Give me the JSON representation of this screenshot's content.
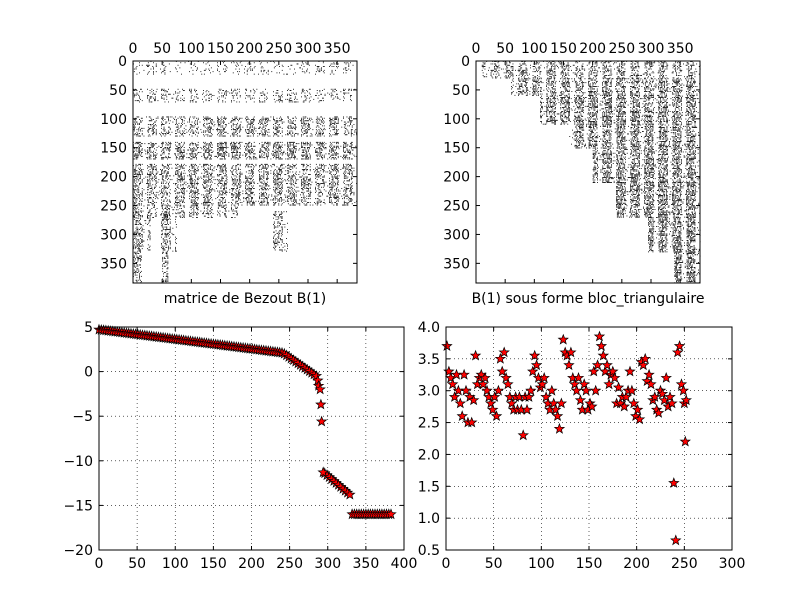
{
  "chart_data": [
    {
      "type": "heatmap",
      "subtype": "sparsity-pattern",
      "xlabel": "matrice de Bezout B(1)",
      "xlim": [
        0,
        384
      ],
      "ylim": [
        0,
        384
      ],
      "x_axis_position": "top",
      "y_axis_inverted": true,
      "xticks": [
        0,
        50,
        100,
        150,
        200,
        250,
        300,
        350
      ],
      "xtick_labels": [
        "0",
        "50",
        "100",
        "150",
        "200",
        "250",
        "300",
        "350"
      ],
      "yticks": [
        0,
        50,
        100,
        150,
        200,
        250,
        300,
        350
      ],
      "ytick_labels": [
        "0",
        "50",
        "100",
        "150",
        "200",
        "250",
        "300",
        "350"
      ],
      "blocks": [
        {
          "x": [
            0,
            384
          ],
          "y": [
            0,
            24
          ],
          "density": 0.12
        },
        {
          "x": [
            0,
            384
          ],
          "y": [
            48,
            72
          ],
          "density": 0.2
        },
        {
          "x": [
            0,
            384
          ],
          "y": [
            96,
            130
          ],
          "density": 0.35
        },
        {
          "x": [
            0,
            384
          ],
          "y": [
            140,
            170
          ],
          "density": 0.45
        },
        {
          "x": [
            0,
            384
          ],
          "y": [
            178,
            250
          ],
          "density": 0.38
        },
        {
          "x": [
            0,
            180
          ],
          "y": [
            250,
            270
          ],
          "density": 0.3
        },
        {
          "x": [
            0,
            30
          ],
          "y": [
            260,
            330
          ],
          "density": 0.35
        },
        {
          "x": [
            48,
            75
          ],
          "y": [
            260,
            330
          ],
          "density": 0.35
        },
        {
          "x": [
            240,
            265
          ],
          "y": [
            260,
            330
          ],
          "density": 0.3
        },
        {
          "x": [
            0,
            15
          ],
          "y": [
            330,
            384
          ],
          "density": 0.3
        },
        {
          "x": [
            50,
            60
          ],
          "y": [
            330,
            384
          ],
          "density": 0.35
        }
      ]
    },
    {
      "type": "heatmap",
      "subtype": "sparsity-pattern",
      "xlabel": "B(1) sous forme bloc_triangulaire",
      "xlim": [
        0,
        384
      ],
      "ylim": [
        0,
        384
      ],
      "x_axis_position": "top",
      "y_axis_inverted": true,
      "xticks": [
        0,
        50,
        100,
        150,
        200,
        250,
        300,
        350
      ],
      "xtick_labels": [
        "0",
        "50",
        "100",
        "150",
        "200",
        "250",
        "300",
        "350"
      ],
      "yticks": [
        0,
        50,
        100,
        150,
        200,
        250,
        300,
        350
      ],
      "ytick_labels": [
        "0",
        "50",
        "100",
        "150",
        "200",
        "250",
        "300",
        "350"
      ],
      "blocks": [
        {
          "x": [
            10,
            384
          ],
          "y": [
            0,
            30
          ],
          "density": 0.35
        },
        {
          "x": [
            60,
            384
          ],
          "y": [
            30,
            60
          ],
          "density": 0.45
        },
        {
          "x": [
            110,
            384
          ],
          "y": [
            60,
            110
          ],
          "density": 0.5
        },
        {
          "x": [
            160,
            384
          ],
          "y": [
            110,
            150
          ],
          "density": 0.5
        },
        {
          "x": [
            200,
            384
          ],
          "y": [
            150,
            210
          ],
          "density": 0.5
        },
        {
          "x": [
            240,
            384
          ],
          "y": [
            210,
            270
          ],
          "density": 0.55
        },
        {
          "x": [
            295,
            384
          ],
          "y": [
            270,
            330
          ],
          "density": 0.55
        },
        {
          "x": [
            340,
            384
          ],
          "y": [
            330,
            384
          ],
          "density": 0.6
        }
      ]
    },
    {
      "type": "scatter",
      "marker": "star",
      "marker_color": "#ff0000",
      "marker_edge_color": "#000000",
      "grid": true,
      "xlim": [
        0,
        400
      ],
      "ylim": [
        -20,
        5
      ],
      "xticks": [
        0,
        50,
        100,
        150,
        200,
        250,
        300,
        350,
        400
      ],
      "xtick_labels": [
        "0",
        "50",
        "100",
        "150",
        "200",
        "250",
        "300",
        "350",
        "400"
      ],
      "yticks": [
        -20,
        -15,
        -10,
        -5,
        0,
        5
      ],
      "ytick_labels": [
        "−20",
        "−15",
        "−10",
        "−5",
        "0",
        "5"
      ],
      "segments": [
        {
          "x_start": 0,
          "x_end": 240,
          "step": 3,
          "y_start": 4.7,
          "y_end": 2.1
        },
        {
          "x_start": 243,
          "x_end": 285,
          "step": 3,
          "y_start": 2.0,
          "y_end": -0.5
        },
        {
          "x_start": 296,
          "x_end": 330,
          "step": 3,
          "y_start": -11.4,
          "y_end": -13.8
        },
        {
          "x_start": 332,
          "x_end": 384,
          "step": 3,
          "y_start": -16,
          "y_end": -16
        }
      ],
      "points": [
        {
          "x": 287,
          "y": -1.0
        },
        {
          "x": 288,
          "y": -1.6
        },
        {
          "x": 290,
          "y": -2.0
        },
        {
          "x": 291,
          "y": -3.7
        },
        {
          "x": 292,
          "y": -5.6
        },
        {
          "x": 294,
          "y": -11.3
        }
      ]
    },
    {
      "type": "scatter",
      "marker": "star",
      "marker_color": "#ff0000",
      "marker_edge_color": "#000000",
      "grid": true,
      "xlim": [
        0,
        300
      ],
      "ylim": [
        0.5,
        4.0
      ],
      "xticks": [
        0,
        50,
        100,
        150,
        200,
        250,
        300
      ],
      "xtick_labels": [
        "0",
        "50",
        "100",
        "150",
        "200",
        "250",
        "300"
      ],
      "yticks": [
        0.5,
        1.0,
        1.5,
        2.0,
        2.5,
        3.0,
        3.5,
        4.0
      ],
      "ytick_labels": [
        "0.5",
        "1.0",
        "1.5",
        "2.0",
        "2.5",
        "3.0",
        "3.5",
        "4.0"
      ],
      "points": [
        {
          "x": 1,
          "y": 3.7
        },
        {
          "x": 3,
          "y": 3.3
        },
        {
          "x": 5,
          "y": 3.2
        },
        {
          "x": 7,
          "y": 3.1
        },
        {
          "x": 9,
          "y": 2.9
        },
        {
          "x": 11,
          "y": 3.25
        },
        {
          "x": 13,
          "y": 3.0
        },
        {
          "x": 15,
          "y": 2.8
        },
        {
          "x": 17,
          "y": 2.6
        },
        {
          "x": 19,
          "y": 3.25
        },
        {
          "x": 21,
          "y": 3.0
        },
        {
          "x": 23,
          "y": 2.5
        },
        {
          "x": 25,
          "y": 2.9
        },
        {
          "x": 27,
          "y": 2.5
        },
        {
          "x": 29,
          "y": 2.85
        },
        {
          "x": 31,
          "y": 3.55
        },
        {
          "x": 33,
          "y": 3.1
        },
        {
          "x": 35,
          "y": 3.2
        },
        {
          "x": 37,
          "y": 3.25
        },
        {
          "x": 39,
          "y": 3.1
        },
        {
          "x": 41,
          "y": 3.2
        },
        {
          "x": 43,
          "y": 3.0
        },
        {
          "x": 45,
          "y": 2.9
        },
        {
          "x": 47,
          "y": 2.8
        },
        {
          "x": 49,
          "y": 2.7
        },
        {
          "x": 51,
          "y": 2.9
        },
        {
          "x": 53,
          "y": 2.6
        },
        {
          "x": 55,
          "y": 3.0
        },
        {
          "x": 57,
          "y": 3.5
        },
        {
          "x": 59,
          "y": 3.3
        },
        {
          "x": 61,
          "y": 3.6
        },
        {
          "x": 63,
          "y": 3.2
        },
        {
          "x": 65,
          "y": 3.1
        },
        {
          "x": 67,
          "y": 2.9
        },
        {
          "x": 69,
          "y": 2.8
        },
        {
          "x": 71,
          "y": 2.7
        },
        {
          "x": 73,
          "y": 2.9
        },
        {
          "x": 75,
          "y": 2.7
        },
        {
          "x": 77,
          "y": 2.9
        },
        {
          "x": 79,
          "y": 2.7
        },
        {
          "x": 81,
          "y": 2.3
        },
        {
          "x": 83,
          "y": 2.9
        },
        {
          "x": 85,
          "y": 2.7
        },
        {
          "x": 87,
          "y": 2.9
        },
        {
          "x": 89,
          "y": 3.0
        },
        {
          "x": 91,
          "y": 3.3
        },
        {
          "x": 93,
          "y": 3.55
        },
        {
          "x": 95,
          "y": 3.4
        },
        {
          "x": 97,
          "y": 3.2
        },
        {
          "x": 99,
          "y": 3.05
        },
        {
          "x": 101,
          "y": 3.1
        },
        {
          "x": 103,
          "y": 3.2
        },
        {
          "x": 105,
          "y": 2.9
        },
        {
          "x": 107,
          "y": 2.8
        },
        {
          "x": 109,
          "y": 2.7
        },
        {
          "x": 111,
          "y": 3.0
        },
        {
          "x": 113,
          "y": 2.8
        },
        {
          "x": 115,
          "y": 2.7
        },
        {
          "x": 117,
          "y": 2.6
        },
        {
          "x": 119,
          "y": 2.4
        },
        {
          "x": 121,
          "y": 2.8
        },
        {
          "x": 123,
          "y": 3.8
        },
        {
          "x": 125,
          "y": 3.6
        },
        {
          "x": 127,
          "y": 3.55
        },
        {
          "x": 129,
          "y": 3.4
        },
        {
          "x": 131,
          "y": 3.6
        },
        {
          "x": 133,
          "y": 3.2
        },
        {
          "x": 135,
          "y": 3.1
        },
        {
          "x": 137,
          "y": 3.0
        },
        {
          "x": 139,
          "y": 3.2
        },
        {
          "x": 141,
          "y": 2.85
        },
        {
          "x": 143,
          "y": 2.7
        },
        {
          "x": 145,
          "y": 3.1
        },
        {
          "x": 147,
          "y": 3.0
        },
        {
          "x": 149,
          "y": 2.7
        },
        {
          "x": 151,
          "y": 2.8
        },
        {
          "x": 153,
          "y": 2.75
        },
        {
          "x": 155,
          "y": 3.3
        },
        {
          "x": 157,
          "y": 3.0
        },
        {
          "x": 159,
          "y": 3.4
        },
        {
          "x": 161,
          "y": 3.85
        },
        {
          "x": 163,
          "y": 3.7
        },
        {
          "x": 165,
          "y": 3.55
        },
        {
          "x": 167,
          "y": 3.3
        },
        {
          "x": 169,
          "y": 3.4
        },
        {
          "x": 171,
          "y": 3.1
        },
        {
          "x": 173,
          "y": 3.25
        },
        {
          "x": 175,
          "y": 3.3
        },
        {
          "x": 177,
          "y": 3.2
        },
        {
          "x": 179,
          "y": 2.8
        },
        {
          "x": 181,
          "y": 3.05
        },
        {
          "x": 183,
          "y": 2.8
        },
        {
          "x": 185,
          "y": 2.9
        },
        {
          "x": 187,
          "y": 2.75
        },
        {
          "x": 189,
          "y": 2.9
        },
        {
          "x": 191,
          "y": 3.0
        },
        {
          "x": 193,
          "y": 3.3
        },
        {
          "x": 195,
          "y": 3.0
        },
        {
          "x": 197,
          "y": 2.8
        },
        {
          "x": 199,
          "y": 2.6
        },
        {
          "x": 201,
          "y": 2.7
        },
        {
          "x": 203,
          "y": 2.55
        },
        {
          "x": 205,
          "y": 3.45
        },
        {
          "x": 207,
          "y": 3.4
        },
        {
          "x": 209,
          "y": 3.5
        },
        {
          "x": 211,
          "y": 3.15
        },
        {
          "x": 213,
          "y": 3.25
        },
        {
          "x": 215,
          "y": 3.1
        },
        {
          "x": 217,
          "y": 2.85
        },
        {
          "x": 219,
          "y": 2.9
        },
        {
          "x": 221,
          "y": 2.7
        },
        {
          "x": 223,
          "y": 2.65
        },
        {
          "x": 225,
          "y": 3.0
        },
        {
          "x": 227,
          "y": 2.95
        },
        {
          "x": 229,
          "y": 2.85
        },
        {
          "x": 231,
          "y": 3.2
        },
        {
          "x": 233,
          "y": 2.75
        },
        {
          "x": 235,
          "y": 2.9
        },
        {
          "x": 237,
          "y": 2.8
        },
        {
          "x": 239,
          "y": 1.55
        },
        {
          "x": 241,
          "y": 0.65
        },
        {
          "x": 243,
          "y": 3.6
        },
        {
          "x": 245,
          "y": 3.7
        },
        {
          "x": 247,
          "y": 3.1
        },
        {
          "x": 249,
          "y": 3.0
        },
        {
          "x": 250,
          "y": 2.8
        },
        {
          "x": 251,
          "y": 2.2
        },
        {
          "x": 252,
          "y": 2.85
        }
      ]
    }
  ]
}
